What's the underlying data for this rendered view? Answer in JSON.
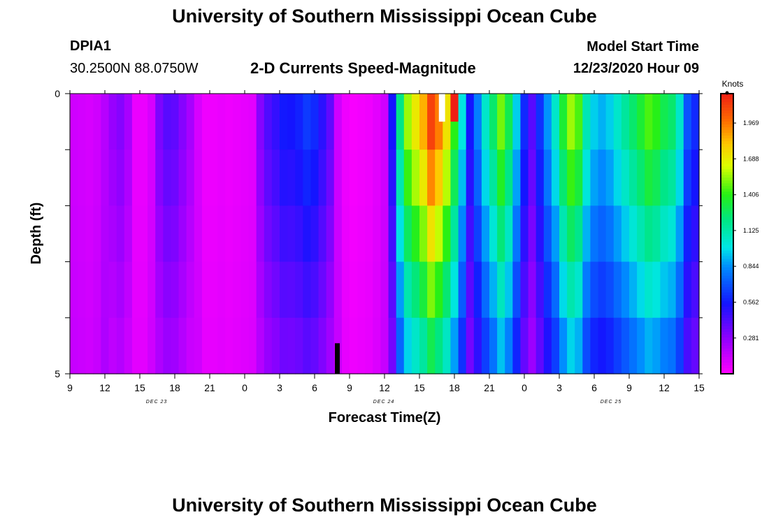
{
  "header": {
    "title": "University of Southern Mississippi Ocean Cube",
    "station_id": "DPIA1",
    "station_coords": "30.2500N 88.0750W",
    "chart_title": "2-D Currents Speed-Magnitude",
    "model_label": "Model Start Time",
    "model_time": "12/23/2020 Hour 09"
  },
  "footer": {
    "title": "University of Southern Mississippi Ocean Cube"
  },
  "chart_data": {
    "type": "heatmap",
    "title": "2-D Currents Speed-Magnitude",
    "xlabel": "Forecast Time(Z)",
    "ylabel": "Depth (ft)",
    "y_ticks": [
      "0",
      "5"
    ],
    "ylim": [
      0,
      5
    ],
    "x_ticks": [
      "9",
      "12",
      "15",
      "18",
      "21",
      "0",
      "3",
      "6",
      "9",
      "12",
      "15",
      "18",
      "21",
      "0",
      "3",
      "6",
      "9",
      "12",
      "15"
    ],
    "day_labels": [
      "DEC 23",
      "DEC 24",
      "DEC 25"
    ],
    "colorbar": {
      "unit": "Knots",
      "range": [
        0,
        2.2
      ],
      "ticks": [
        "1.969",
        "1.688",
        "1.406",
        "1.125",
        "0.844",
        "0.562",
        "0.281"
      ],
      "tick_values": [
        1.969,
        1.688,
        1.406,
        1.125,
        0.844,
        0.562,
        0.281
      ]
    },
    "time_hours_per_column": 1,
    "depth_layers": 5,
    "profile": [
      0.12,
      0.11,
      0.1,
      0.12,
      0.18,
      0.26,
      0.3,
      0.22,
      0.05,
      0.05,
      0.1,
      0.32,
      0.4,
      0.38,
      0.3,
      0.22,
      0.1,
      0.04,
      0.04,
      0.05,
      0.04,
      0.05,
      0.06,
      0.07,
      0.3,
      0.42,
      0.48,
      0.56,
      0.55,
      0.58,
      0.64,
      0.6,
      0.5,
      0.38,
      0.12,
      0.04,
      0.02,
      0.03,
      0.04,
      0.07,
      0.12,
      0.55,
      1.2,
      1.55,
      1.7,
      1.85,
      2.1,
      1.95,
      1.72,
      1.4,
      1.0,
      0.55,
      0.8,
      1.05,
      1.25,
      1.5,
      1.3,
      0.95,
      0.6,
      0.4,
      0.62,
      0.85,
      1.05,
      1.35,
      1.55,
      1.45,
      1.1,
      0.95,
      0.9,
      0.95,
      1.05,
      1.15,
      1.25,
      1.35,
      1.45,
      1.4,
      1.3,
      1.25,
      1.05,
      0.7,
      0.6
    ],
    "layer_factors": [
      1.0,
      0.92,
      0.82,
      0.72,
      0.62
    ],
    "special_cells": [
      {
        "hour": 48,
        "layer": 0,
        "value": 2.4
      },
      {
        "hour": 47,
        "layer": 0,
        "value": 2.2
      },
      {
        "hour": 49,
        "layer": 0,
        "value": 2.1
      }
    ],
    "marker": {
      "hour": 35,
      "layer": 4,
      "value": 0
    }
  }
}
